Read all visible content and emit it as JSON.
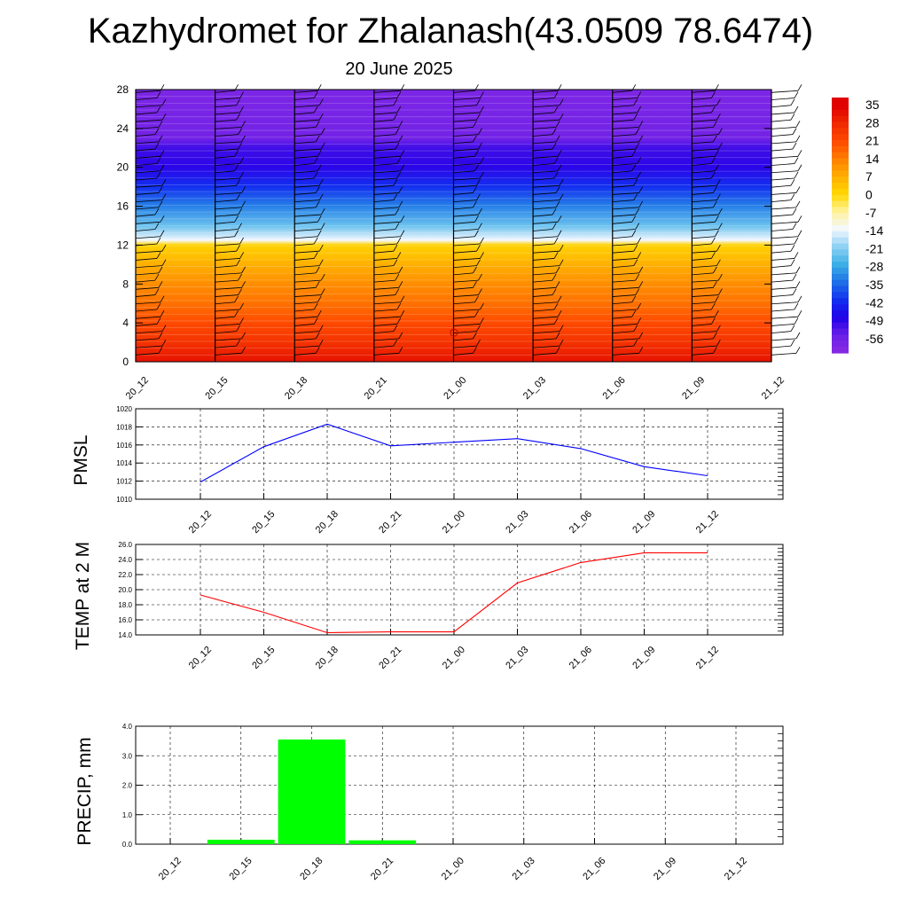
{
  "page": {
    "title": "Kazhydromet for Zhalanash(43.0509 78.6474)",
    "date": "20 June 2025"
  },
  "chart_data": [
    {
      "type": "heatmap",
      "name": "temperature-wind-cross-section",
      "title": "",
      "y_ticks": [
        0,
        4,
        8,
        12,
        16,
        20,
        24,
        28
      ],
      "ylim": [
        0,
        28
      ],
      "x_ticks": [
        "20_12",
        "20_15",
        "20_18",
        "20_21",
        "21_00",
        "21_03",
        "21_06",
        "21_09",
        "21_12"
      ],
      "colorbar_labels": [
        "35",
        "28",
        "21",
        "14",
        "7",
        "0",
        "-7",
        "-14",
        "-21",
        "-28",
        "-35",
        "-42",
        "-49",
        "-56"
      ],
      "temperature_profile": {
        "levels": [
          0,
          2,
          4,
          6,
          8,
          10,
          12,
          12.5,
          14,
          16,
          18,
          20,
          22,
          23,
          28
        ],
        "values": [
          32,
          26,
          21,
          16,
          12,
          7,
          1,
          -14,
          -24,
          -33,
          -42,
          -50,
          -52,
          -58,
          -60
        ]
      },
      "colors": {
        "warm_low": "#e60000",
        "cold_top": "#8a2be2"
      }
    },
    {
      "type": "line",
      "name": "pmsl",
      "ylabel": "PMSL",
      "ylim": [
        1010,
        1020
      ],
      "y_ticks": [
        "1010",
        "1012",
        "1014",
        "1016",
        "1018",
        "1020"
      ],
      "categories": [
        "20_12",
        "20_15",
        "20_18",
        "20_21",
        "21_00",
        "21_03",
        "21_06",
        "21_09",
        "21_12"
      ],
      "values": [
        1011.9,
        1015.8,
        1018.3,
        1015.9,
        1016.3,
        1016.7,
        1015.6,
        1013.6,
        1012.6
      ],
      "color": "#0000ff",
      "grid": true
    },
    {
      "type": "line",
      "name": "temp-2m",
      "ylabel": "TEMP at 2 M",
      "ylim": [
        14,
        26
      ],
      "y_ticks": [
        "14.0",
        "16.0",
        "18.0",
        "20.0",
        "22.0",
        "24.0",
        "26.0"
      ],
      "categories": [
        "20_12",
        "20_15",
        "20_18",
        "20_21",
        "21_00",
        "21_03",
        "21_06",
        "21_09",
        "21_12"
      ],
      "values": [
        19.3,
        17.0,
        14.3,
        14.4,
        14.4,
        20.9,
        23.6,
        24.9,
        24.9
      ],
      "color": "#ff0000",
      "grid": true
    },
    {
      "type": "bar",
      "name": "precip",
      "ylabel": "PRECIP, mm",
      "ylim": [
        0,
        4
      ],
      "y_ticks": [
        "0.0",
        "1.0",
        "2.0",
        "3.0",
        "4.0"
      ],
      "categories": [
        "20_12",
        "20_15",
        "20_18",
        "20_21",
        "21_00",
        "21_03",
        "21_06",
        "21_09",
        "21_12"
      ],
      "values": [
        0,
        0.15,
        3.55,
        0.13,
        0,
        0,
        0,
        0,
        0
      ],
      "color": "#00ff00",
      "grid": true
    }
  ]
}
